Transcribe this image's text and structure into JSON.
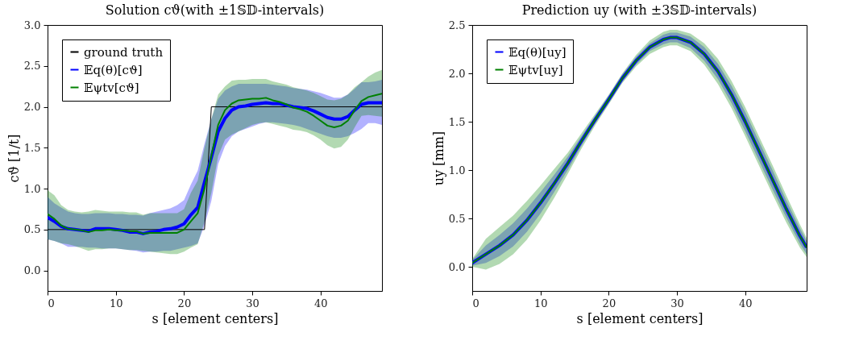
{
  "chart_data": [
    {
      "type": "line",
      "title": "Solution cϑ(with ±1𝕊𝔻-intervals)",
      "xlabel": "s [element centers]",
      "ylabel": "cϑ [1/t]",
      "x": [
        0,
        1,
        2,
        3,
        4,
        5,
        6,
        7,
        8,
        9,
        10,
        11,
        12,
        13,
        14,
        15,
        16,
        17,
        18,
        19,
        20,
        21,
        22,
        23,
        24,
        25,
        26,
        27,
        28,
        29,
        30,
        31,
        32,
        33,
        34,
        35,
        36,
        37,
        38,
        39,
        40,
        41,
        42,
        43,
        44,
        45,
        46,
        47,
        48,
        49
      ],
      "xlim": [
        0,
        49
      ],
      "xticks": [
        0,
        10,
        20,
        30,
        40
      ],
      "ylim": [
        -0.25,
        3.0
      ],
      "yticks": [
        {
          "value": 0,
          "label": "0.0"
        },
        0.5,
        {
          "value": 1,
          "label": "1.0"
        },
        1.5,
        {
          "value": 2,
          "label": "2.0"
        },
        2.5,
        {
          "value": 3,
          "label": "3.0"
        }
      ],
      "grid": false,
      "legend": "top left",
      "line_style": "solid",
      "marker": "none",
      "series": [
        {
          "name": "ground truth",
          "color": "#000000",
          "x": [
            0,
            23,
            24,
            49
          ],
          "values": [
            0.5,
            0.5,
            2.0,
            2.0
          ]
        },
        {
          "name": "𝔼q(θ)[cϑ]",
          "color": "#0000ff",
          "values": [
            0.65,
            0.6,
            0.54,
            0.51,
            0.5,
            0.49,
            0.48,
            0.51,
            0.51,
            0.51,
            0.5,
            0.49,
            0.47,
            0.47,
            0.45,
            0.47,
            0.48,
            0.5,
            0.51,
            0.53,
            0.57,
            0.68,
            0.77,
            1.08,
            1.38,
            1.7,
            1.86,
            1.96,
            2.0,
            2.01,
            2.03,
            2.04,
            2.05,
            2.04,
            2.04,
            2.02,
            2.0,
            1.99,
            1.98,
            1.95,
            1.91,
            1.87,
            1.85,
            1.85,
            1.88,
            1.96,
            2.03,
            2.05,
            2.05,
            2.05
          ],
          "lower": [
            0.38,
            0.36,
            0.33,
            0.29,
            0.29,
            0.29,
            0.28,
            0.28,
            0.27,
            0.27,
            0.27,
            0.26,
            0.25,
            0.24,
            0.22,
            0.23,
            0.23,
            0.24,
            0.24,
            0.26,
            0.28,
            0.3,
            0.33,
            0.55,
            0.85,
            1.3,
            1.52,
            1.64,
            1.7,
            1.73,
            1.76,
            1.79,
            1.81,
            1.81,
            1.8,
            1.79,
            1.78,
            1.76,
            1.73,
            1.7,
            1.67,
            1.64,
            1.62,
            1.62,
            1.64,
            1.68,
            1.73,
            1.8,
            1.8,
            1.78
          ],
          "upper": [
            0.9,
            0.82,
            0.77,
            0.72,
            0.7,
            0.69,
            0.69,
            0.7,
            0.7,
            0.7,
            0.69,
            0.69,
            0.68,
            0.68,
            0.67,
            0.7,
            0.72,
            0.74,
            0.76,
            0.8,
            0.86,
            1.05,
            1.22,
            1.55,
            1.85,
            2.1,
            2.2,
            2.25,
            2.28,
            2.28,
            2.28,
            2.28,
            2.28,
            2.27,
            2.26,
            2.25,
            2.23,
            2.22,
            2.21,
            2.19,
            2.17,
            2.14,
            2.11,
            2.11,
            2.15,
            2.22,
            2.3,
            2.3,
            2.31,
            2.33
          ]
        },
        {
          "name": "𝔼ψtv[cϑ]",
          "color": "#008000",
          "values": [
            0.69,
            0.63,
            0.55,
            0.51,
            0.5,
            0.49,
            0.47,
            0.49,
            0.49,
            0.5,
            0.49,
            0.49,
            0.48,
            0.48,
            0.45,
            0.46,
            0.46,
            0.46,
            0.46,
            0.46,
            0.5,
            0.6,
            0.7,
            1.0,
            1.4,
            1.78,
            1.96,
            2.04,
            2.08,
            2.09,
            2.1,
            2.1,
            2.11,
            2.08,
            2.06,
            2.03,
            1.99,
            1.97,
            1.94,
            1.89,
            1.83,
            1.77,
            1.75,
            1.77,
            1.83,
            1.96,
            2.07,
            2.12,
            2.14,
            2.16
          ],
          "lower": [
            0.38,
            0.36,
            0.33,
            0.32,
            0.3,
            0.27,
            0.24,
            0.26,
            0.26,
            0.27,
            0.27,
            0.26,
            0.25,
            0.25,
            0.24,
            0.23,
            0.22,
            0.21,
            0.2,
            0.2,
            0.23,
            0.28,
            0.32,
            0.6,
            0.95,
            1.4,
            1.6,
            1.66,
            1.7,
            1.74,
            1.78,
            1.8,
            1.81,
            1.79,
            1.77,
            1.75,
            1.72,
            1.71,
            1.69,
            1.65,
            1.6,
            1.53,
            1.49,
            1.51,
            1.6,
            1.75,
            1.89,
            1.9,
            1.89,
            1.88
          ],
          "upper": [
            0.98,
            0.92,
            0.8,
            0.74,
            0.72,
            0.71,
            0.72,
            0.74,
            0.73,
            0.72,
            0.72,
            0.72,
            0.71,
            0.71,
            0.68,
            0.7,
            0.7,
            0.7,
            0.7,
            0.7,
            0.75,
            0.95,
            1.1,
            1.5,
            1.85,
            2.15,
            2.25,
            2.32,
            2.33,
            2.33,
            2.34,
            2.34,
            2.34,
            2.31,
            2.29,
            2.27,
            2.24,
            2.22,
            2.2,
            2.17,
            2.13,
            2.09,
            2.08,
            2.1,
            2.15,
            2.24,
            2.3,
            2.37,
            2.42,
            2.45
          ]
        }
      ]
    },
    {
      "type": "line",
      "title": "Prediction uy (with ±3𝕊𝔻-intervals)",
      "xlabel": "s [element centers]",
      "ylabel": "uy [mm]",
      "x": [
        0,
        2,
        4,
        6,
        8,
        10,
        12,
        14,
        16,
        18,
        20,
        22,
        24,
        26,
        28,
        29,
        30,
        32,
        34,
        36,
        38,
        40,
        42,
        44,
        46,
        48,
        49
      ],
      "xlim": [
        0,
        49
      ],
      "xticks": [
        0,
        10,
        20,
        30,
        40
      ],
      "ylim": [
        -0.25,
        2.5
      ],
      "yticks": [
        {
          "value": 0,
          "label": "0.0"
        },
        0.5,
        {
          "value": 1,
          "label": "1.0"
        },
        1.5,
        {
          "value": 2,
          "label": "2.0"
        },
        2.5
      ],
      "grid": false,
      "legend": "top left",
      "line_style": "solid",
      "marker": "none",
      "series": [
        {
          "name": "𝔼q(θ)[uy]",
          "color": "#0000ff",
          "values": [
            0.04,
            0.13,
            0.22,
            0.33,
            0.48,
            0.66,
            0.86,
            1.07,
            1.3,
            1.52,
            1.73,
            1.95,
            2.13,
            2.27,
            2.35,
            2.37,
            2.37,
            2.32,
            2.2,
            2.02,
            1.78,
            1.5,
            1.2,
            0.9,
            0.6,
            0.32,
            0.2
          ],
          "lower": [
            0.01,
            0.04,
            0.11,
            0.21,
            0.36,
            0.55,
            0.77,
            1.0,
            1.25,
            1.48,
            1.69,
            1.91,
            2.09,
            2.23,
            2.3,
            2.32,
            2.32,
            2.26,
            2.13,
            1.94,
            1.69,
            1.4,
            1.1,
            0.8,
            0.51,
            0.24,
            0.13
          ],
          "upper": [
            0.07,
            0.22,
            0.33,
            0.45,
            0.6,
            0.77,
            0.95,
            1.14,
            1.35,
            1.56,
            1.77,
            1.99,
            2.17,
            2.31,
            2.4,
            2.42,
            2.42,
            2.38,
            2.27,
            2.1,
            1.87,
            1.6,
            1.3,
            1.0,
            0.69,
            0.4,
            0.27
          ]
        },
        {
          "name": "𝔼ψtv[uy]",
          "color": "#008000",
          "values": [
            0.04,
            0.13,
            0.22,
            0.33,
            0.48,
            0.66,
            0.86,
            1.07,
            1.3,
            1.52,
            1.73,
            1.95,
            2.13,
            2.27,
            2.35,
            2.37,
            2.37,
            2.32,
            2.2,
            2.02,
            1.78,
            1.5,
            1.2,
            0.9,
            0.6,
            0.32,
            0.2
          ],
          "lower": [
            0.0,
            -0.03,
            0.03,
            0.13,
            0.28,
            0.48,
            0.71,
            0.96,
            1.22,
            1.46,
            1.68,
            1.9,
            2.07,
            2.2,
            2.27,
            2.29,
            2.29,
            2.23,
            2.09,
            1.89,
            1.64,
            1.35,
            1.05,
            0.75,
            0.46,
            0.2,
            0.1
          ],
          "upper": [
            0.08,
            0.29,
            0.41,
            0.53,
            0.68,
            0.84,
            1.01,
            1.18,
            1.38,
            1.58,
            1.78,
            2.0,
            2.19,
            2.34,
            2.43,
            2.45,
            2.45,
            2.41,
            2.31,
            2.15,
            1.92,
            1.65,
            1.35,
            1.05,
            0.74,
            0.44,
            0.3
          ]
        }
      ]
    }
  ]
}
